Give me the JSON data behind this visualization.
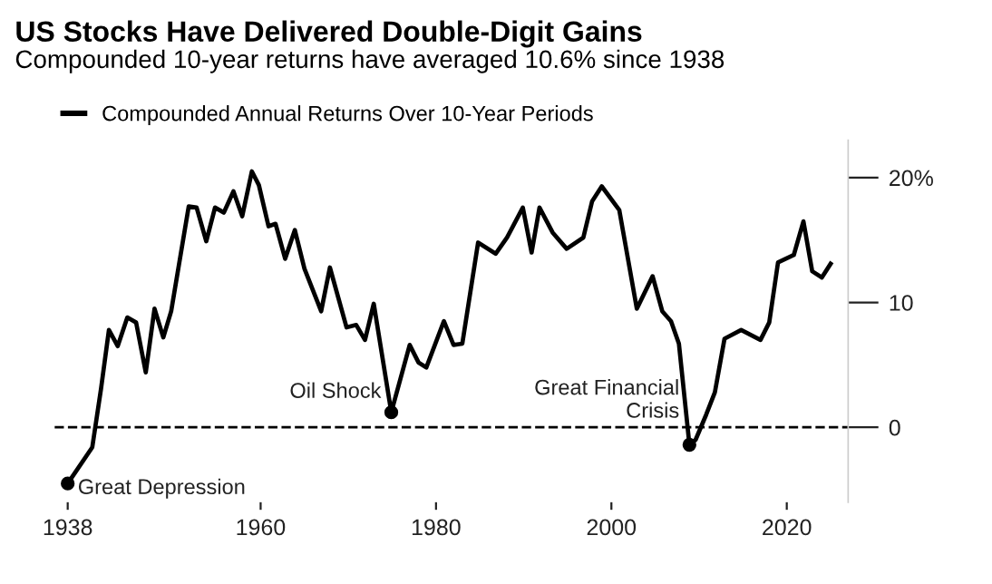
{
  "chart_data": {
    "type": "line",
    "title": "US Stocks Have Delivered Double-Digit Gains",
    "subtitle": "Compounded 10-year returns have averaged 10.6% since 1938",
    "series": [
      {
        "name": "Compounded Annual Returns Over 10-Year Periods",
        "color": "#000000",
        "x": [
          1938,
          1940.8,
          1941.8,
          1942.7,
          1943.7,
          1944.8,
          1945.8,
          1946.9,
          1947.9,
          1948.9,
          1949.8,
          1951.8,
          1952.7,
          1953.8,
          1954.8,
          1955.8,
          1956.9,
          1957.9,
          1959,
          1959.8,
          1960.9,
          1961.7,
          1962.8,
          1963.9,
          1965,
          1966.9,
          1967.9,
          1969.8,
          1970.9,
          1971.9,
          1972.9,
          1974.9,
          1977,
          1978,
          1978.9,
          1980.9,
          1982,
          1983,
          1984.8,
          1986.8,
          1988.1,
          1989.9,
          1990.9,
          1991.8,
          1993.3,
          1994.9,
          1996.8,
          1997.8,
          1998.9,
          2000.9,
          2002.9,
          2004.7,
          2005.8,
          2006.8,
          2007.7,
          2008.9,
          2009.6,
          2010.8,
          2011.8,
          2012.9,
          2014.8,
          2017,
          2018,
          2019,
          2020.8,
          2021.9,
          2022.9,
          2024,
          2025
        ],
        "values": [
          -4.5,
          -1.6,
          3.1,
          7.8,
          6.5,
          8.8,
          8.4,
          4.4,
          9.5,
          7.2,
          9.3,
          17.7,
          17.6,
          14.9,
          17.6,
          17.2,
          18.9,
          16.9,
          20.5,
          19.4,
          16.1,
          16.3,
          13.5,
          15.8,
          12.7,
          9.3,
          12.8,
          8.0,
          8.2,
          7.0,
          9.9,
          1.2,
          6.6,
          5.2,
          4.8,
          8.5,
          6.6,
          6.7,
          14.8,
          13.9,
          15.2,
          17.6,
          14.0,
          17.6,
          15.6,
          14.3,
          15.2,
          18.1,
          19.3,
          17.4,
          9.5,
          12.1,
          9.3,
          8.5,
          6.7,
          -1.4,
          -1.0,
          1.0,
          2.8,
          7.1,
          7.8,
          7.0,
          8.4,
          13.2,
          13.8,
          16.5,
          12.5,
          12.0,
          13.1
        ]
      }
    ],
    "annotations": [
      {
        "text": "Great Depression",
        "x": 1938,
        "y": -4.5
      },
      {
        "text": "Oil Shock",
        "x": 1974.9,
        "y": 1.2
      },
      {
        "text": "Great Financial\nCrisis",
        "x": 2008.9,
        "y": -1.4
      }
    ],
    "xlim": [
      1936.5,
      2027
    ],
    "xticks": [
      1938,
      1960,
      1980,
      2000,
      2020
    ],
    "ylim": [
      -6,
      23
    ],
    "yticks": [
      0,
      10,
      {
        "value": 20,
        "label": "20%"
      }
    ],
    "ref_lines": [
      {
        "axis": "y",
        "value": 0,
        "line_style": "dashed",
        "color": "#000000"
      }
    ],
    "legend": "top left",
    "grid": false,
    "line_style": "solid",
    "marker": "none"
  }
}
